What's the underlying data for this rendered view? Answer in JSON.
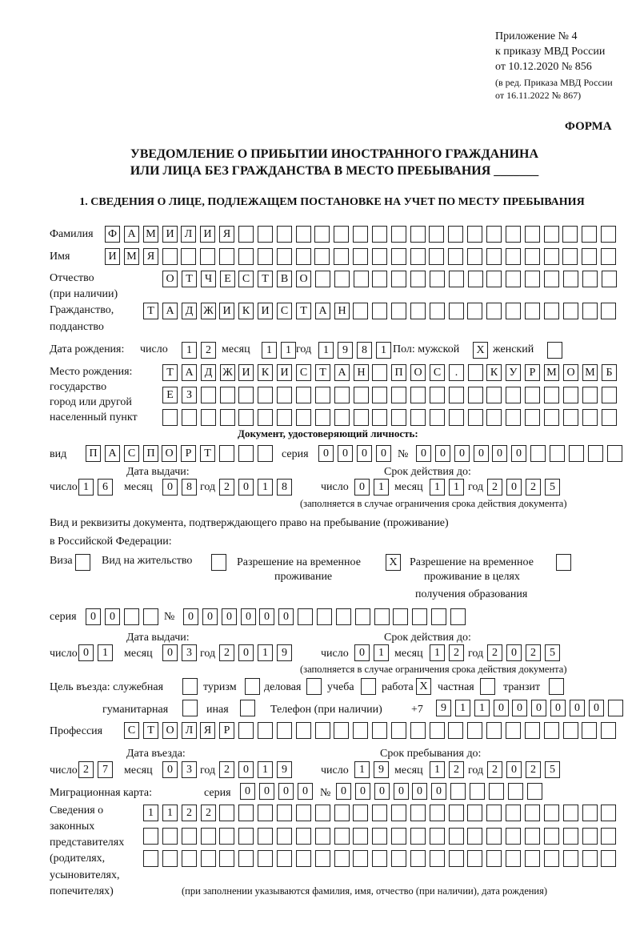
{
  "header": {
    "line1": "Приложение № 4",
    "line2": "к приказу МВД России",
    "line3": "от 10.12.2020 № 856",
    "line4": "(в ред. Приказа МВД России",
    "line5": "от 16.11.2022 № 867)",
    "forma": "ФОРМА",
    "title1": "УВЕДОМЛЕНИЕ О ПРИБЫТИИ ИНОСТРАННОГО ГРАЖДАНИНА",
    "title2": "ИЛИ ЛИЦА БЕЗ ГРАЖДАНСТВА В МЕСТО ПРЕБЫВАНИЯ _______",
    "section1": "1. СВЕДЕНИЯ О ЛИЦЕ, ПОДЛЕЖАЩЕМ ПОСТАНОВКЕ НА УЧЕТ ПО МЕСТУ ПРЕБЫВАНИЯ"
  },
  "labels": {
    "surname": "Фамилия",
    "name": "Имя",
    "patronymic1": "Отчество",
    "patronymic2": "(при наличии)",
    "citizenship1": "Гражданство,",
    "citizenship2": "подданство",
    "birth_date": "Дата рождения:",
    "day": "число",
    "month": "месяц",
    "year": "год",
    "sex": "Пол: мужской",
    "female": "женский",
    "birthplace1": "Место рождения:",
    "birthplace2": "государство",
    "birthplace3": "город или другой",
    "birthplace4": "населенный пункт",
    "id_doc": "Документ, удостоверяющий личность:",
    "kind": "вид",
    "series": "серия",
    "number": "№",
    "issue_date": "Дата выдачи:",
    "valid_until": "Срок действия до:",
    "validity_note": "(заполняется в случае ограничения срока действия документа)",
    "stay_doc1": "Вид и реквизиты документа, подтверждающего право на пребывание (проживание)",
    "stay_doc2": "в Российской Федерации:",
    "visa": "Виза",
    "residence": "Вид на жительство",
    "trp1": "Разрешение на временное",
    "trp2": "проживание",
    "trpe1": "Разрешение на временное",
    "trpe2": "проживание в целях",
    "trpe3": "получения образования",
    "purpose": "Цель въезда: служебная",
    "tourism": "туризм",
    "business": "деловая",
    "study": "учеба",
    "work": "работа",
    "private": "частная",
    "transit": "транзит",
    "humanitarian": "гуманитарная",
    "other": "иная",
    "phone": "Телефон (при наличии)",
    "phone_prefix": "+7",
    "profession": "Профессия",
    "entry_date": "Дата въезда:",
    "stay_until": "Срок пребывания до:",
    "migration_card": "Миграционная карта:",
    "reps1": "Сведения о",
    "reps2": "законных",
    "reps3": "представителях",
    "reps4": "(родителях,",
    "reps5": "усыновителях,",
    "reps6": "попечителях)",
    "reps_note": "(при заполнении указываются фамилия, имя, отчество (при наличии), дата рождения)"
  },
  "fields": {
    "surname": "ФАМИЛИЯ",
    "name": "ИМЯ",
    "patronymic": "ОТЧЕСТВО",
    "citizenship": "ТАДЖИКИСТАН",
    "birth_day": "12",
    "birth_month": "11",
    "birth_year": "1981",
    "male": "X",
    "female": "",
    "birthplace1": "ТАДЖИКИСТАН ПОС. КУРМОМБ",
    "birthplace2": "ЕЗ",
    "birthplace3": "",
    "id_kind": "ПАСПОРТ",
    "id_series": "0000",
    "id_number": "000000",
    "id_issue_day": "16",
    "id_issue_month": "08",
    "id_issue_year": "2018",
    "id_valid_day": "01",
    "id_valid_month": "11",
    "id_valid_year": "2025",
    "visa": "",
    "residence": "",
    "trp": "X",
    "trpe": "",
    "stay_series": "00",
    "stay_number": "000000",
    "stay_issue_day": "01",
    "stay_issue_month": "03",
    "stay_issue_year": "2019",
    "stay_valid_day": "01",
    "stay_valid_month": "12",
    "stay_valid_year": "2025",
    "p_service": "",
    "p_tourism": "",
    "p_business": "",
    "p_study": "",
    "p_work": "X",
    "p_private": "",
    "p_transit": "",
    "p_humanitarian": "",
    "p_other": "",
    "phone": "911000000",
    "profession": "СТОЛЯР",
    "entry_day": "27",
    "entry_month": "03",
    "entry_year": "2019",
    "until_day": "19",
    "until_month": "12",
    "until_year": "2025",
    "mc_series": "0000",
    "mc_number": "000000",
    "reps1": "1122",
    "reps2": "",
    "reps3": ""
  }
}
